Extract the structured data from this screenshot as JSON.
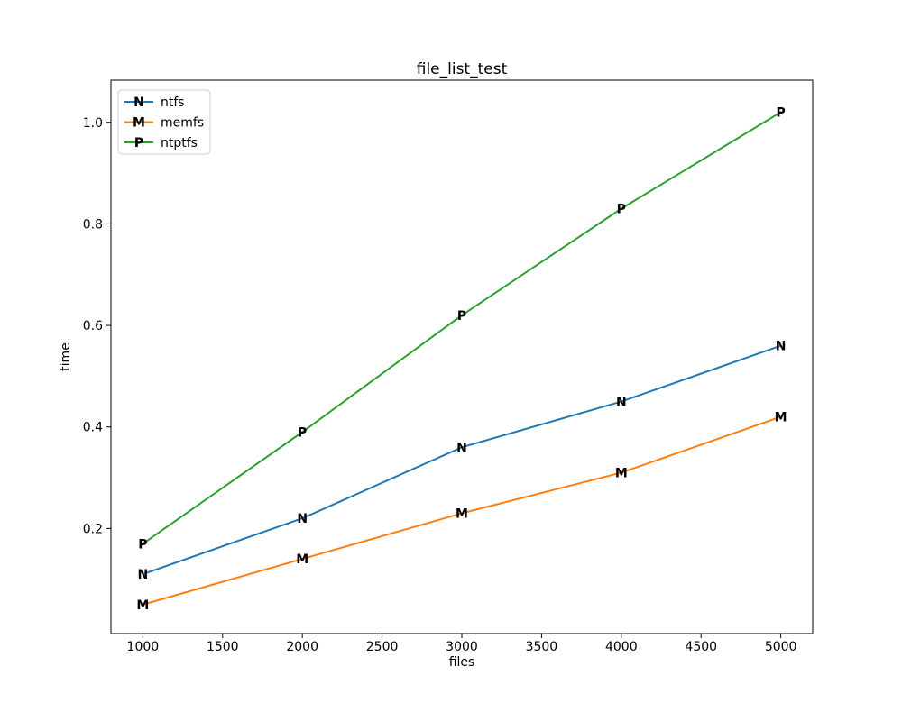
{
  "chart_data": {
    "type": "line",
    "title": "file_list_test",
    "xlabel": "files",
    "ylabel": "time",
    "x": [
      1000,
      2000,
      3000,
      4000,
      5000
    ],
    "series": [
      {
        "name": "ntfs",
        "marker": "N",
        "color": "#1f77b4",
        "values": [
          0.11,
          0.22,
          0.36,
          0.45,
          0.56
        ]
      },
      {
        "name": "memfs",
        "marker": "M",
        "color": "#ff7f0e",
        "values": [
          0.05,
          0.14,
          0.23,
          0.31,
          0.42
        ]
      },
      {
        "name": "ntptfs",
        "marker": "P",
        "color": "#2ca02c",
        "values": [
          0.17,
          0.39,
          0.62,
          0.83,
          1.02
        ]
      }
    ],
    "xticks": [
      1000,
      1500,
      2000,
      2500,
      3000,
      3500,
      4000,
      4500,
      5000
    ],
    "xtick_labels": [
      "1000",
      "1500",
      "2000",
      "2500",
      "3000",
      "3500",
      "4000",
      "4500",
      "5000"
    ],
    "yticks": [
      0.2,
      0.4,
      0.6,
      0.8,
      1.0
    ],
    "ytick_labels": [
      "0.2",
      "0.4",
      "0.6",
      "0.8",
      "1.0"
    ],
    "xlim": [
      800,
      5200
    ],
    "ylim": [
      -0.007,
      1.083
    ],
    "grid": false,
    "legend_position": "upper left",
    "axis_color": "#000000",
    "legend_border_color": "#cccccc",
    "background": "#ffffff"
  }
}
